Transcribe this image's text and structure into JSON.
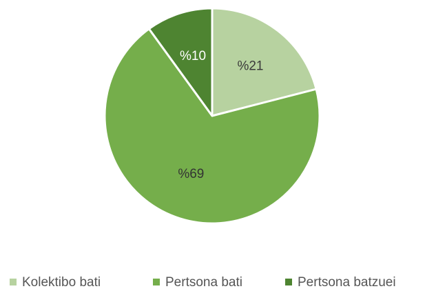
{
  "chart_data": {
    "type": "pie",
    "categories": [
      "Kolektibo bati",
      "Pertsona bati",
      "Pertsona batzuei"
    ],
    "values": [
      21,
      69,
      10
    ],
    "data_labels": [
      "%21",
      "%69",
      "%10"
    ],
    "colors": [
      "#b7d2a0",
      "#75ae4b",
      "#4e8431"
    ],
    "label_colors": [
      "#3a3a3a",
      "#333333",
      "#ffffff"
    ],
    "start_angle_deg": 0,
    "direction": "clockwise",
    "legend_position": "bottom",
    "title": ""
  }
}
